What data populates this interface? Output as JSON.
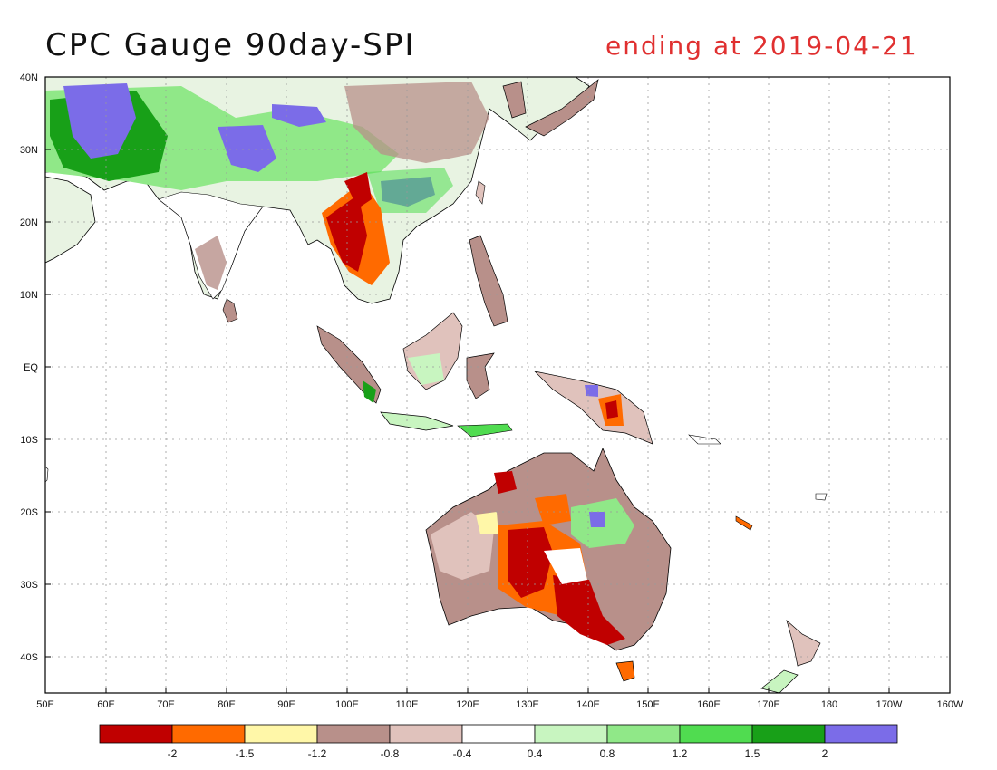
{
  "title": {
    "text": "CPC Gauge 90day-SPI",
    "subtitle": "ending at 2019-04-21",
    "subtitle_color": "#e03030"
  },
  "map": {
    "lat_ticks": [
      "40N",
      "30N",
      "20N",
      "10N",
      "EQ",
      "10S",
      "20S",
      "30S",
      "40S"
    ],
    "lon_ticks": [
      "50E",
      "60E",
      "70E",
      "80E",
      "90E",
      "100E",
      "110E",
      "120E",
      "130E",
      "140E",
      "150E",
      "160E",
      "170E",
      "180",
      "170W",
      "160W"
    ]
  },
  "legend": {
    "colors": [
      "#c00000",
      "#ff6a00",
      "#fff7a8",
      "#b8908a",
      "#e0c2bc",
      "#ffffff",
      "#c8f5c0",
      "#90e888",
      "#50dc50",
      "#18a018",
      "#7b6ce8"
    ],
    "labels": [
      "-2",
      "-1.5",
      "-1.2",
      "-0.8",
      "-0.4",
      "0.4",
      "0.8",
      "1.2",
      "1.5",
      "2"
    ]
  }
}
